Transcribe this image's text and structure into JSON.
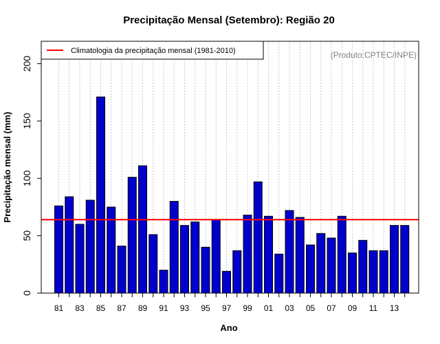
{
  "chart_data": {
    "type": "bar",
    "title": "Precipitação Mensal (Setembro): Região 20",
    "xlabel": "Ano",
    "ylabel": "Precipitação mensal (mm)",
    "ylim": [
      0,
      220
    ],
    "yticks": [
      0,
      50,
      100,
      150,
      200
    ],
    "credit": "(Produto:CPTEC/INPE)",
    "legend": {
      "label": "Climatologia da precipitação mensal (1981-2010)",
      "position": "top-left",
      "color": "#ff0000"
    },
    "climatology": 64,
    "bar_color": "#0000cc",
    "grid": "vertical-dotted",
    "categories": [
      "81",
      "82",
      "83",
      "84",
      "85",
      "86",
      "87",
      "88",
      "89",
      "90",
      "91",
      "92",
      "93",
      "94",
      "95",
      "96",
      "97",
      "98",
      "99",
      "00",
      "01",
      "02",
      "03",
      "04",
      "05",
      "06",
      "07",
      "08",
      "09",
      "10",
      "11",
      "12",
      "13",
      "14"
    ],
    "tick_labels": [
      "81",
      "83",
      "85",
      "87",
      "89",
      "91",
      "93",
      "95",
      "97",
      "99",
      "01",
      "03",
      "05",
      "07",
      "09",
      "11",
      "13"
    ],
    "values": [
      76,
      84,
      60,
      81,
      171,
      75,
      41,
      101,
      111,
      51,
      20,
      80,
      59,
      62,
      40,
      64,
      19,
      37,
      68,
      97,
      67,
      34,
      72,
      66,
      42,
      52,
      48,
      67,
      35,
      46,
      37,
      37,
      59,
      59
    ]
  }
}
